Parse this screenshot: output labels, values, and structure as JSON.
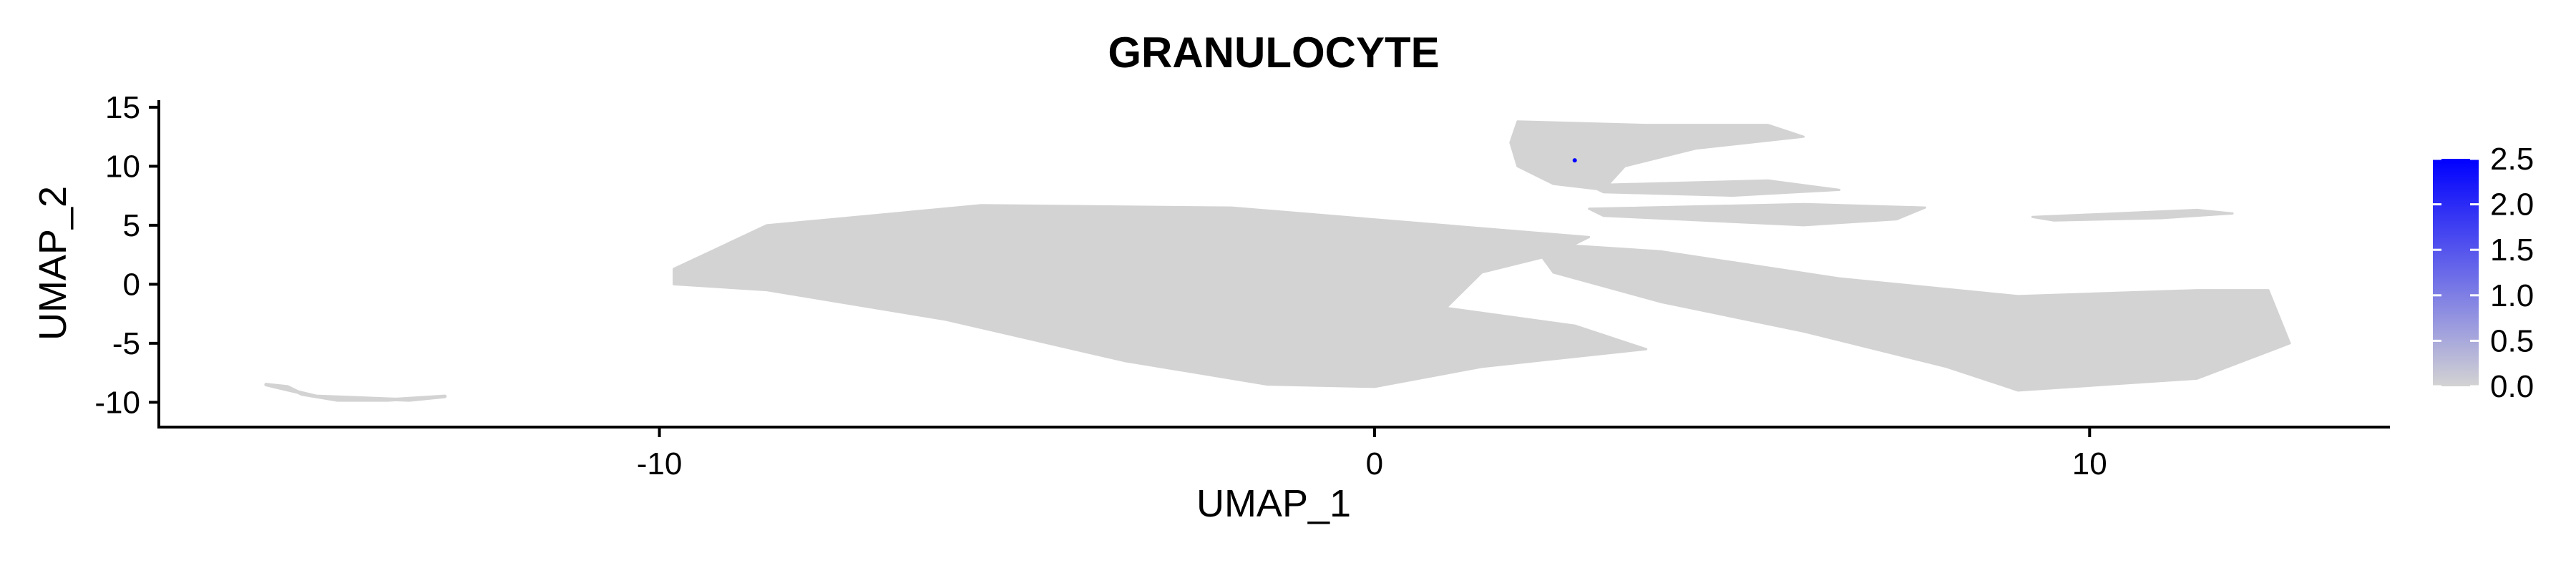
{
  "chart_data": {
    "type": "scatter",
    "title": "GRANULOCYTE",
    "xlabel": "UMAP_1",
    "ylabel": "UMAP_2",
    "xlim": [
      -17.0,
      14.2
    ],
    "ylim": [
      -12.1,
      15.6
    ],
    "x_ticks": [
      -10,
      0,
      10
    ],
    "x_tick_labels": [
      "-10",
      "0",
      "10"
    ],
    "y_ticks": [
      -10,
      -5,
      0,
      5,
      10,
      15
    ],
    "y_tick_labels": [
      "-10",
      "-5",
      "0",
      "5",
      "10",
      "15"
    ],
    "grid": false,
    "legend": {
      "placement": "right",
      "type": "colorbar",
      "min": 0.0,
      "max": 2.5,
      "ticks": [
        0.0,
        0.5,
        1.0,
        1.5,
        2.0,
        2.5
      ],
      "tick_labels": [
        "0.0",
        "0.5",
        "1.0",
        "1.5",
        "2.0",
        "2.5"
      ],
      "low_color": "#d3d3d3",
      "high_color": "#0000ff"
    },
    "point_color": "#d3d3d3",
    "highlight_points": [
      {
        "x": 2.8,
        "y": 10.5,
        "value": 2.5
      }
    ],
    "clusters": [
      {
        "name": "main-body",
        "outline": [
          [
            -9.8,
            1.3
          ],
          [
            -8.5,
            5.0
          ],
          [
            -5.5,
            6.7
          ],
          [
            -2.0,
            6.5
          ],
          [
            1.0,
            5.0
          ],
          [
            3.0,
            4.0
          ],
          [
            2.5,
            2.5
          ],
          [
            1.5,
            1.0
          ],
          [
            1.0,
            -2.0
          ],
          [
            2.8,
            -3.5
          ],
          [
            3.8,
            -5.5
          ],
          [
            1.5,
            -7.0
          ],
          [
            0.0,
            -8.7
          ],
          [
            -1.5,
            -8.5
          ],
          [
            -3.5,
            -6.5
          ],
          [
            -6.0,
            -3.0
          ],
          [
            -8.5,
            -0.5
          ],
          [
            -9.8,
            0.0
          ]
        ]
      },
      {
        "name": "right-tail",
        "outline": [
          [
            2.2,
            3.5
          ],
          [
            4.0,
            2.8
          ],
          [
            6.5,
            0.5
          ],
          [
            9.0,
            -1.0
          ],
          [
            11.5,
            -0.5
          ],
          [
            12.5,
            -0.5
          ],
          [
            12.8,
            -5.0
          ],
          [
            11.5,
            -8.0
          ],
          [
            9.0,
            -9.0
          ],
          [
            8.0,
            -7.0
          ],
          [
            6.0,
            -4.0
          ],
          [
            4.0,
            -1.5
          ],
          [
            2.5,
            1.0
          ]
        ]
      },
      {
        "name": "top-arm",
        "outline": [
          [
            2.0,
            13.8
          ],
          [
            3.8,
            13.5
          ],
          [
            5.5,
            13.5
          ],
          [
            6.0,
            12.5
          ],
          [
            4.5,
            11.5
          ],
          [
            3.5,
            10.0
          ],
          [
            3.2,
            8.0
          ],
          [
            2.5,
            8.5
          ],
          [
            2.0,
            10.0
          ],
          [
            1.9,
            12.0
          ]
        ]
      },
      {
        "name": "mid-band",
        "outline": [
          [
            3.0,
            8.4
          ],
          [
            5.5,
            8.8
          ],
          [
            6.5,
            8.0
          ],
          [
            5.0,
            7.5
          ],
          [
            3.2,
            7.8
          ]
        ]
      },
      {
        "name": "mid-streak",
        "outline": [
          [
            3.0,
            6.4
          ],
          [
            6.0,
            6.8
          ],
          [
            7.7,
            6.5
          ],
          [
            7.3,
            5.5
          ],
          [
            6.0,
            5.0
          ],
          [
            3.2,
            5.8
          ]
        ]
      },
      {
        "name": "far-right-streak",
        "outline": [
          [
            9.2,
            5.7
          ],
          [
            11.5,
            6.3
          ],
          [
            12.0,
            6.0
          ],
          [
            11.0,
            5.6
          ],
          [
            9.5,
            5.4
          ]
        ]
      },
      {
        "name": "left-arc",
        "outline": [
          [
            -15.5,
            -8.5
          ],
          [
            -14.8,
            -9.5
          ],
          [
            -13.5,
            -9.8
          ],
          [
            -13.0,
            -9.5
          ],
          [
            -13.8,
            -9.8
          ],
          [
            -14.5,
            -9.8
          ],
          [
            -15.0,
            -9.3
          ],
          [
            -15.2,
            -8.7
          ]
        ]
      }
    ]
  }
}
